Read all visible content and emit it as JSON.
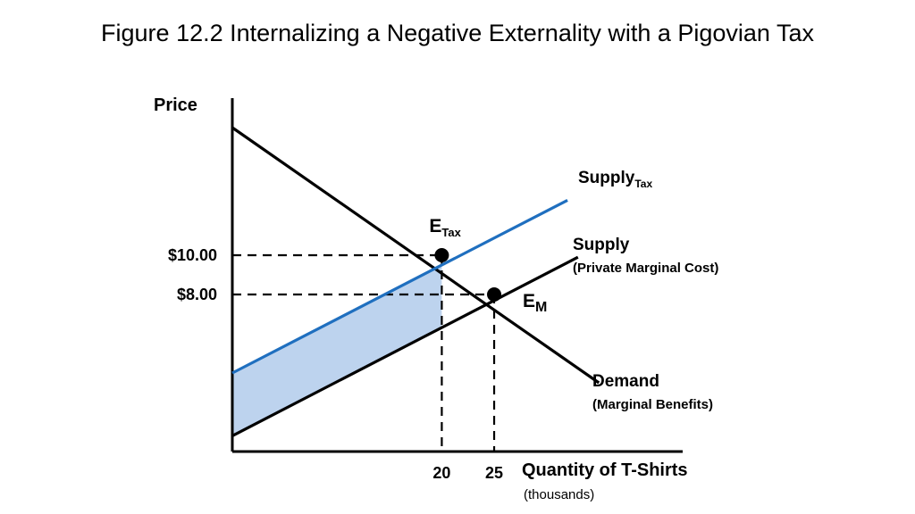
{
  "title": "Figure 12.2 Internalizing a Negative Externality with a Pigovian Tax",
  "chart_data": {
    "type": "line",
    "ylabel": "Price",
    "xlabel": "Quantity of T-Shirts",
    "xlabel_sub": "(thousands)",
    "x_ticks": [
      {
        "value": 20,
        "label": "20"
      },
      {
        "value": 25,
        "label": "25"
      }
    ],
    "y_ticks": [
      {
        "value": 10,
        "label": "$10.00"
      },
      {
        "value": 8,
        "label": "$8.00"
      }
    ],
    "xlim": [
      0,
      43
    ],
    "ylim": [
      0,
      18
    ],
    "series": [
      {
        "name": "Demand",
        "subtitle": "(Marginal Benefits)",
        "color": "#000000",
        "x": [
          0,
          35
        ],
        "y": [
          16.5,
          3.5
        ]
      },
      {
        "name": "Supply",
        "subtitle": "(Private Marginal Cost)",
        "color": "#000000",
        "x": [
          0,
          33
        ],
        "y": [
          0.8,
          9.9
        ]
      },
      {
        "name": "Supply",
        "name_subscript": "Tax",
        "color": "#1f6fbf",
        "x": [
          0,
          32
        ],
        "y": [
          4.0,
          12.8
        ]
      }
    ],
    "points": [
      {
        "label": "E",
        "subscript": "Tax",
        "x": 20,
        "y": 10
      },
      {
        "label": "E",
        "subscript": "M",
        "x": 25,
        "y": 8
      }
    ],
    "shaded_region": {
      "color": "#bdd3ee",
      "between": "SupplyTax and Supply",
      "x_range": [
        0,
        20
      ]
    }
  }
}
